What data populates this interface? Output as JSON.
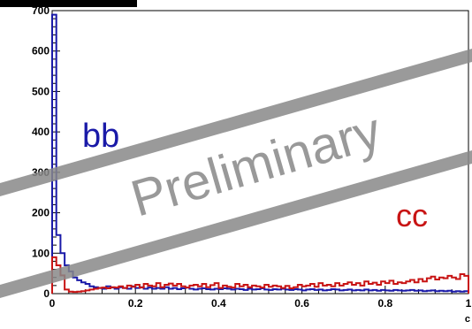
{
  "chart_data": {
    "type": "line",
    "style": "step-histogram",
    "x_range": [
      0,
      1
    ],
    "y_range": [
      0,
      700
    ],
    "x_ticks": [
      0,
      0.2,
      0.4,
      0.6,
      0.8,
      1
    ],
    "x_tick_labels": [
      "0",
      "0.2",
      "0.4",
      "0.6",
      "0.8",
      "1"
    ],
    "y_ticks": [
      0,
      100,
      200,
      300,
      400,
      500,
      600,
      700
    ],
    "y_tick_labels": [
      "0",
      "100",
      "200",
      "300",
      "400",
      "500",
      "600",
      "700"
    ],
    "x_axis_label_fragment": "c",
    "grid": false,
    "bin_width": 0.01,
    "series": [
      {
        "name": "bb",
        "color": "#1a1aa8",
        "values": [
          690,
          145,
          100,
          70,
          55,
          40,
          33,
          28,
          24,
          18,
          16,
          14,
          12,
          18,
          15,
          12,
          16,
          14,
          12,
          18,
          14,
          16,
          12,
          15,
          12,
          14,
          12,
          16,
          12,
          14,
          11,
          13,
          15,
          12,
          10,
          12,
          13,
          11,
          10,
          12,
          11,
          13,
          12,
          10,
          12,
          11,
          9,
          12,
          10,
          11,
          13,
          10,
          9,
          11,
          10,
          12,
          10,
          9,
          11,
          10,
          8,
          10,
          11,
          9,
          10,
          8,
          9,
          11,
          10,
          8,
          9,
          10,
          8,
          9,
          8,
          10,
          8,
          9,
          7,
          9,
          8,
          7,
          9,
          8,
          7,
          8,
          9,
          7,
          8,
          6,
          7,
          8,
          6,
          7,
          6,
          7,
          5,
          6,
          5,
          6
        ]
      },
      {
        "name": "cc",
        "color": "#c81414",
        "values": [
          90,
          70,
          45,
          10,
          5,
          4,
          5,
          6,
          8,
          10,
          12,
          14,
          15,
          13,
          16,
          15,
          18,
          14,
          20,
          17,
          22,
          15,
          24,
          20,
          18,
          26,
          16,
          22,
          25,
          20,
          24,
          18,
          15,
          20,
          22,
          18,
          24,
          16,
          21,
          26,
          14,
          20,
          17,
          15,
          24,
          18,
          22,
          16,
          20,
          18,
          15,
          22,
          17,
          20,
          18,
          14,
          19,
          13,
          16,
          22,
          18,
          20,
          24,
          17,
          26,
          20,
          22,
          18,
          26,
          20,
          24,
          28,
          22,
          26,
          20,
          30,
          24,
          27,
          22,
          30,
          26,
          32,
          24,
          28,
          26,
          30,
          34,
          28,
          36,
          30,
          38,
          42,
          35,
          40,
          38,
          44,
          40,
          36,
          48,
          44
        ]
      }
    ],
    "annotations": [
      {
        "text": "bb",
        "color": "#1a1aa8"
      },
      {
        "text": "cc",
        "color": "#c81414"
      }
    ],
    "watermark": {
      "text": "Preliminary",
      "color": "#888888"
    }
  }
}
